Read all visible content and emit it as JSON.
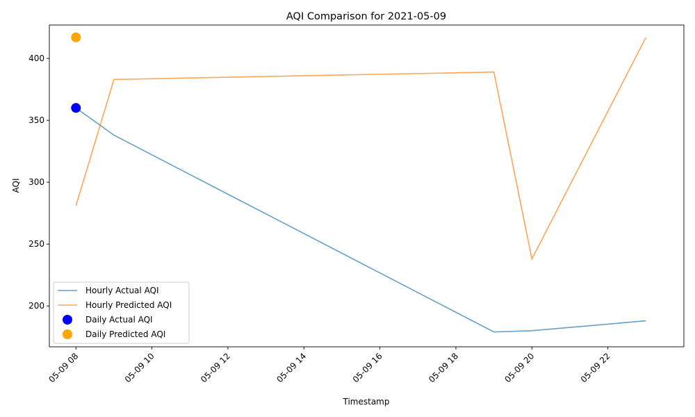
{
  "chart_data": {
    "type": "line",
    "title": "AQI Comparison for 2021-05-09",
    "xlabel": "Timestamp",
    "ylabel": "AQI",
    "x_unit": "hour",
    "xlim": [
      7.3,
      24.0
    ],
    "ylim": [
      167,
      427
    ],
    "x_ticks": [
      {
        "value": 8,
        "label": "05-09 08"
      },
      {
        "value": 10,
        "label": "05-09 10"
      },
      {
        "value": 12,
        "label": "05-09 12"
      },
      {
        "value": 14,
        "label": "05-09 14"
      },
      {
        "value": 16,
        "label": "05-09 16"
      },
      {
        "value": 18,
        "label": "05-09 18"
      },
      {
        "value": 20,
        "label": "05-09 20"
      },
      {
        "value": 22,
        "label": "05-09 22"
      }
    ],
    "y_ticks": [
      200,
      250,
      300,
      350,
      400
    ],
    "grid": false,
    "legend_position": "lower-left",
    "series": [
      {
        "name": "Hourly Actual AQI",
        "kind": "line",
        "color": "#1f77b4",
        "opacity": 0.7,
        "x": [
          8,
          9,
          19,
          20,
          23
        ],
        "values": [
          360,
          338,
          179,
          180,
          188
        ]
      },
      {
        "name": "Hourly Predicted AQI",
        "kind": "line",
        "color": "#ff7f0e",
        "opacity": 0.7,
        "x": [
          8,
          9,
          19,
          20,
          23
        ],
        "values": [
          281,
          383,
          389,
          238,
          417
        ]
      },
      {
        "name": "Daily Actual AQI",
        "kind": "scatter",
        "color": "#0000ff",
        "opacity": 1,
        "x": [
          8
        ],
        "values": [
          360
        ]
      },
      {
        "name": "Daily Predicted AQI",
        "kind": "scatter",
        "color": "#ffa500",
        "opacity": 1,
        "x": [
          8
        ],
        "values": [
          417
        ]
      }
    ]
  }
}
